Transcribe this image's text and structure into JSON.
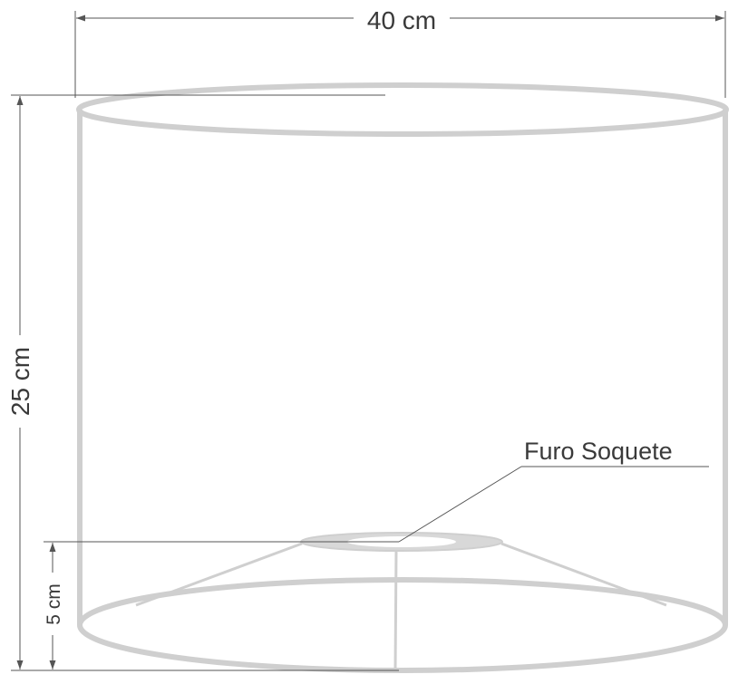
{
  "dimensions": {
    "width_label": "40 cm",
    "height_label": "25 cm",
    "base_label": "5 cm"
  },
  "callout": {
    "label": "Furo Soquete"
  },
  "colors": {
    "frame": "#cfcfcf",
    "dimension_line": "#555555",
    "text": "#3a3a3a"
  }
}
